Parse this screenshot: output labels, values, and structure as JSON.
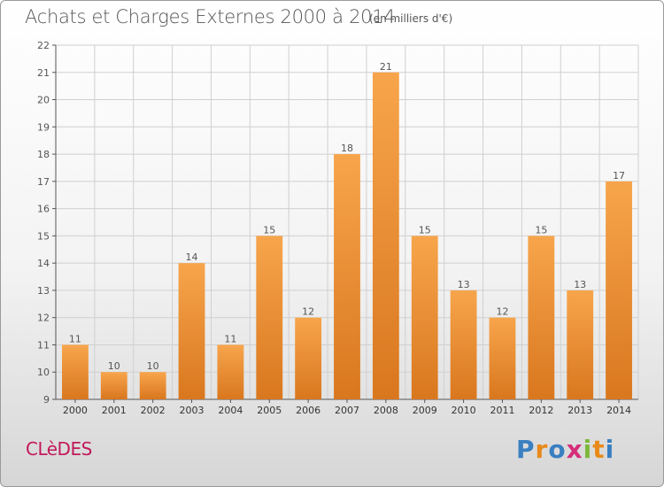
{
  "header": {
    "title": "Achats et Charges Externes 2000 à 2014",
    "subtitle": "(en milliers d'€)"
  },
  "footer": {
    "place": "CLèDES",
    "logo_letters": [
      "P",
      "r",
      "o",
      "x",
      "i",
      "t",
      "i"
    ],
    "logo_colors": [
      "#3a7fc1",
      "#e88a1a",
      "#3a7fc1",
      "#d62d7a",
      "#7db83a",
      "#e88a1a",
      "#3a7fc1"
    ]
  },
  "colors": {
    "bar_light": "#f7a54c",
    "bar_dark": "#d9771e",
    "axis": "#555555",
    "grid": "#d0d0d0"
  },
  "chart_data": {
    "type": "bar",
    "title": "Achats et Charges Externes 2000 à 2014",
    "subtitle": "(en milliers d'€)",
    "categories": [
      "2000",
      "2001",
      "2002",
      "2003",
      "2004",
      "2005",
      "2006",
      "2007",
      "2008",
      "2009",
      "2010",
      "2011",
      "2012",
      "2013",
      "2014"
    ],
    "values": [
      11,
      10,
      10,
      14,
      11,
      15,
      12,
      18,
      21,
      15,
      13,
      12,
      15,
      13,
      17
    ],
    "ylim": [
      9,
      22
    ],
    "yticks": [
      9,
      10,
      11,
      12,
      13,
      14,
      15,
      16,
      17,
      18,
      19,
      20,
      21,
      22
    ],
    "grid": true,
    "data_labels": true
  }
}
